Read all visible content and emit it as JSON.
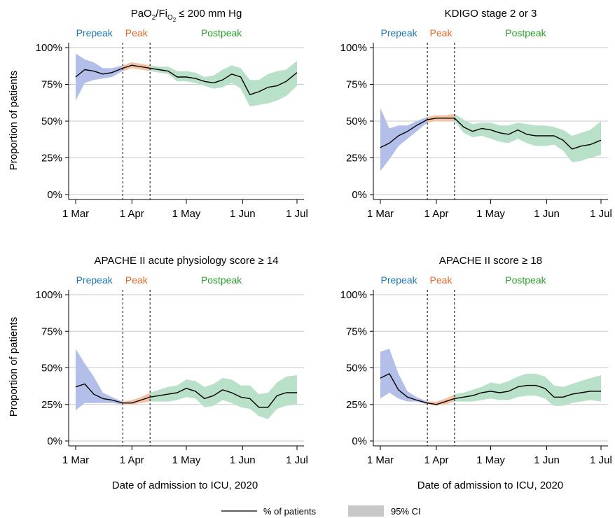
{
  "figure": {
    "y_axis_title": "Proportion of patients",
    "x_axis_title": "Date of admission to ICU, 2020",
    "legend": {
      "line_label": "% of patients",
      "band_label": "95% CI"
    }
  },
  "colors": {
    "prepeak": "#1f77b4",
    "peak": "#e4682a",
    "postpeak": "#2ca02c",
    "prepeak_band": "#b3bfe8",
    "peak_band": "#f6c2a4",
    "postpeak_band": "#b9e0c9",
    "line": "#000000",
    "grid": "#c8c8c8",
    "legend_band": "#c8c8c8"
  },
  "phases": [
    "Prepeak",
    "Peak",
    "Postpeak"
  ],
  "chart_data": [
    {
      "type": "line",
      "title": "PaO₂/FiO₂ ≤ 200 mm Hg",
      "title_parts": [
        "PaO",
        "2",
        "/Fi",
        "O",
        "2",
        " ≤ 200 mm Hg"
      ],
      "xlabel": "",
      "ylabel": "Proportion of patients",
      "x_ticks": [
        "1 Mar",
        "1 Apr",
        "1 May",
        "1 Jun",
        "1 Jul"
      ],
      "y_ticks": [
        "0%",
        "25%",
        "50%",
        "75%",
        "100%"
      ],
      "xlim": [
        "2020-03-01",
        "2020-07-01"
      ],
      "ylim": [
        0,
        100
      ],
      "peak_boundaries": [
        "2020-03-27",
        "2020-04-11"
      ],
      "grid": true,
      "series": [
        {
          "x": [
            "2020-03-01",
            "2020-03-06",
            "2020-03-11",
            "2020-03-16",
            "2020-03-21",
            "2020-03-27",
            "2020-04-01",
            "2020-04-06",
            "2020-04-11",
            "2020-04-16",
            "2020-04-21",
            "2020-04-26",
            "2020-05-01",
            "2020-05-06",
            "2020-05-11",
            "2020-05-16",
            "2020-05-21",
            "2020-05-26",
            "2020-05-31",
            "2020-06-05",
            "2020-06-10",
            "2020-06-15",
            "2020-06-20",
            "2020-06-25",
            "2020-07-01"
          ],
          "y": [
            80,
            85,
            84,
            82,
            83,
            86,
            88,
            87,
            86,
            85,
            84,
            80,
            80,
            79,
            77,
            76,
            78,
            82,
            80,
            68,
            70,
            73,
            74,
            77,
            83
          ],
          "lower": [
            64,
            76,
            78,
            79,
            80,
            84,
            86,
            85,
            84,
            83,
            82,
            77,
            77,
            76,
            74,
            72,
            73,
            76,
            72,
            60,
            61,
            62,
            64,
            67,
            74
          ],
          "upper": [
            96,
            92,
            90,
            86,
            86,
            88,
            90,
            89,
            88,
            87,
            87,
            84,
            84,
            83,
            80,
            81,
            85,
            88,
            86,
            78,
            78,
            82,
            84,
            85,
            91
          ]
        }
      ]
    },
    {
      "type": "line",
      "title": "KDIGO stage 2 or 3",
      "title_parts": null,
      "xlabel": "",
      "ylabel": "",
      "x_ticks": [
        "1 Mar",
        "1 Apr",
        "1 May",
        "1 Jun",
        "1 Jul"
      ],
      "y_ticks": [
        "0%",
        "25%",
        "50%",
        "75%",
        "100%"
      ],
      "xlim": [
        "2020-03-01",
        "2020-07-01"
      ],
      "ylim": [
        0,
        100
      ],
      "peak_boundaries": [
        "2020-03-27",
        "2020-04-11"
      ],
      "grid": true,
      "series": [
        {
          "x": [
            "2020-03-01",
            "2020-03-06",
            "2020-03-11",
            "2020-03-16",
            "2020-03-21",
            "2020-03-27",
            "2020-04-01",
            "2020-04-06",
            "2020-04-11",
            "2020-04-16",
            "2020-04-21",
            "2020-04-26",
            "2020-05-01",
            "2020-05-06",
            "2020-05-11",
            "2020-05-16",
            "2020-05-21",
            "2020-05-26",
            "2020-05-31",
            "2020-06-05",
            "2020-06-10",
            "2020-06-15",
            "2020-06-20",
            "2020-06-25",
            "2020-07-01"
          ],
          "y": [
            32,
            35,
            40,
            43,
            47,
            51,
            52,
            52,
            52,
            46,
            43,
            45,
            44,
            42,
            41,
            44,
            41,
            40,
            40,
            40,
            37,
            31,
            33,
            34,
            37
          ],
          "lower": [
            16,
            24,
            33,
            38,
            43,
            49,
            50,
            50,
            50,
            42,
            39,
            40,
            38,
            36,
            35,
            38,
            35,
            33,
            33,
            34,
            30,
            22,
            23,
            25,
            27
          ],
          "upper": [
            59,
            45,
            47,
            47,
            50,
            53,
            54,
            54,
            55,
            51,
            48,
            49,
            49,
            47,
            47,
            49,
            48,
            47,
            47,
            46,
            44,
            40,
            42,
            44,
            50
          ]
        }
      ]
    },
    {
      "type": "line",
      "title": "APACHE II acute physiology score ≥ 14",
      "title_parts": null,
      "xlabel": "Date of admission to ICU, 2020",
      "ylabel": "Proportion of patients",
      "x_ticks": [
        "1 Mar",
        "1 Apr",
        "1 May",
        "1 Jun",
        "1 Jul"
      ],
      "y_ticks": [
        "0%",
        "25%",
        "50%",
        "75%",
        "100%"
      ],
      "xlim": [
        "2020-03-01",
        "2020-07-01"
      ],
      "ylim": [
        0,
        100
      ],
      "peak_boundaries": [
        "2020-03-27",
        "2020-04-11"
      ],
      "grid": true,
      "series": [
        {
          "x": [
            "2020-03-01",
            "2020-03-06",
            "2020-03-11",
            "2020-03-16",
            "2020-03-21",
            "2020-03-27",
            "2020-04-01",
            "2020-04-06",
            "2020-04-11",
            "2020-04-16",
            "2020-04-21",
            "2020-04-26",
            "2020-05-01",
            "2020-05-06",
            "2020-05-11",
            "2020-05-16",
            "2020-05-21",
            "2020-05-26",
            "2020-05-31",
            "2020-06-05",
            "2020-06-10",
            "2020-06-15",
            "2020-06-20",
            "2020-06-25",
            "2020-07-01"
          ],
          "y": [
            37,
            39,
            32,
            29,
            28,
            26,
            26,
            28,
            30,
            31,
            32,
            33,
            36,
            34,
            29,
            31,
            35,
            33,
            30,
            29,
            23,
            23,
            31,
            33,
            33
          ],
          "lower": [
            21,
            26,
            26,
            26,
            26,
            25,
            25,
            26,
            27,
            27,
            27,
            28,
            30,
            29,
            23,
            24,
            28,
            26,
            23,
            22,
            17,
            15,
            22,
            24,
            25
          ],
          "upper": [
            63,
            53,
            44,
            33,
            30,
            27,
            28,
            30,
            33,
            35,
            37,
            38,
            42,
            41,
            37,
            39,
            43,
            42,
            38,
            38,
            32,
            33,
            40,
            44,
            45
          ]
        }
      ]
    },
    {
      "type": "line",
      "title": "APACHE II score ≥ 18",
      "title_parts": null,
      "xlabel": "Date of admission to ICU, 2020",
      "ylabel": "",
      "x_ticks": [
        "1 Mar",
        "1 Apr",
        "1 May",
        "1 Jun",
        "1 Jul"
      ],
      "y_ticks": [
        "0%",
        "25%",
        "50%",
        "75%",
        "100%"
      ],
      "xlim": [
        "2020-03-01",
        "2020-07-01"
      ],
      "ylim": [
        0,
        100
      ],
      "peak_boundaries": [
        "2020-03-27",
        "2020-04-11"
      ],
      "grid": true,
      "series": [
        {
          "x": [
            "2020-03-01",
            "2020-03-06",
            "2020-03-11",
            "2020-03-16",
            "2020-03-21",
            "2020-03-27",
            "2020-04-01",
            "2020-04-06",
            "2020-04-11",
            "2020-04-16",
            "2020-04-21",
            "2020-04-26",
            "2020-05-01",
            "2020-05-06",
            "2020-05-11",
            "2020-05-16",
            "2020-05-21",
            "2020-05-26",
            "2020-05-31",
            "2020-06-05",
            "2020-06-10",
            "2020-06-15",
            "2020-06-20",
            "2020-06-25",
            "2020-07-01"
          ],
          "y": [
            43,
            46,
            35,
            30,
            28,
            26,
            25,
            27,
            29,
            30,
            31,
            33,
            34,
            33,
            34,
            37,
            38,
            38,
            36,
            30,
            30,
            32,
            33,
            34,
            34
          ],
          "lower": [
            29,
            33,
            29,
            27,
            27,
            25,
            24,
            25,
            27,
            27,
            27,
            28,
            29,
            28,
            28,
            30,
            31,
            31,
            29,
            24,
            24,
            26,
            27,
            28,
            27
          ],
          "upper": [
            61,
            63,
            46,
            34,
            30,
            27,
            27,
            29,
            32,
            33,
            35,
            37,
            40,
            39,
            41,
            44,
            46,
            46,
            44,
            38,
            37,
            39,
            41,
            43,
            45
          ]
        }
      ]
    }
  ]
}
